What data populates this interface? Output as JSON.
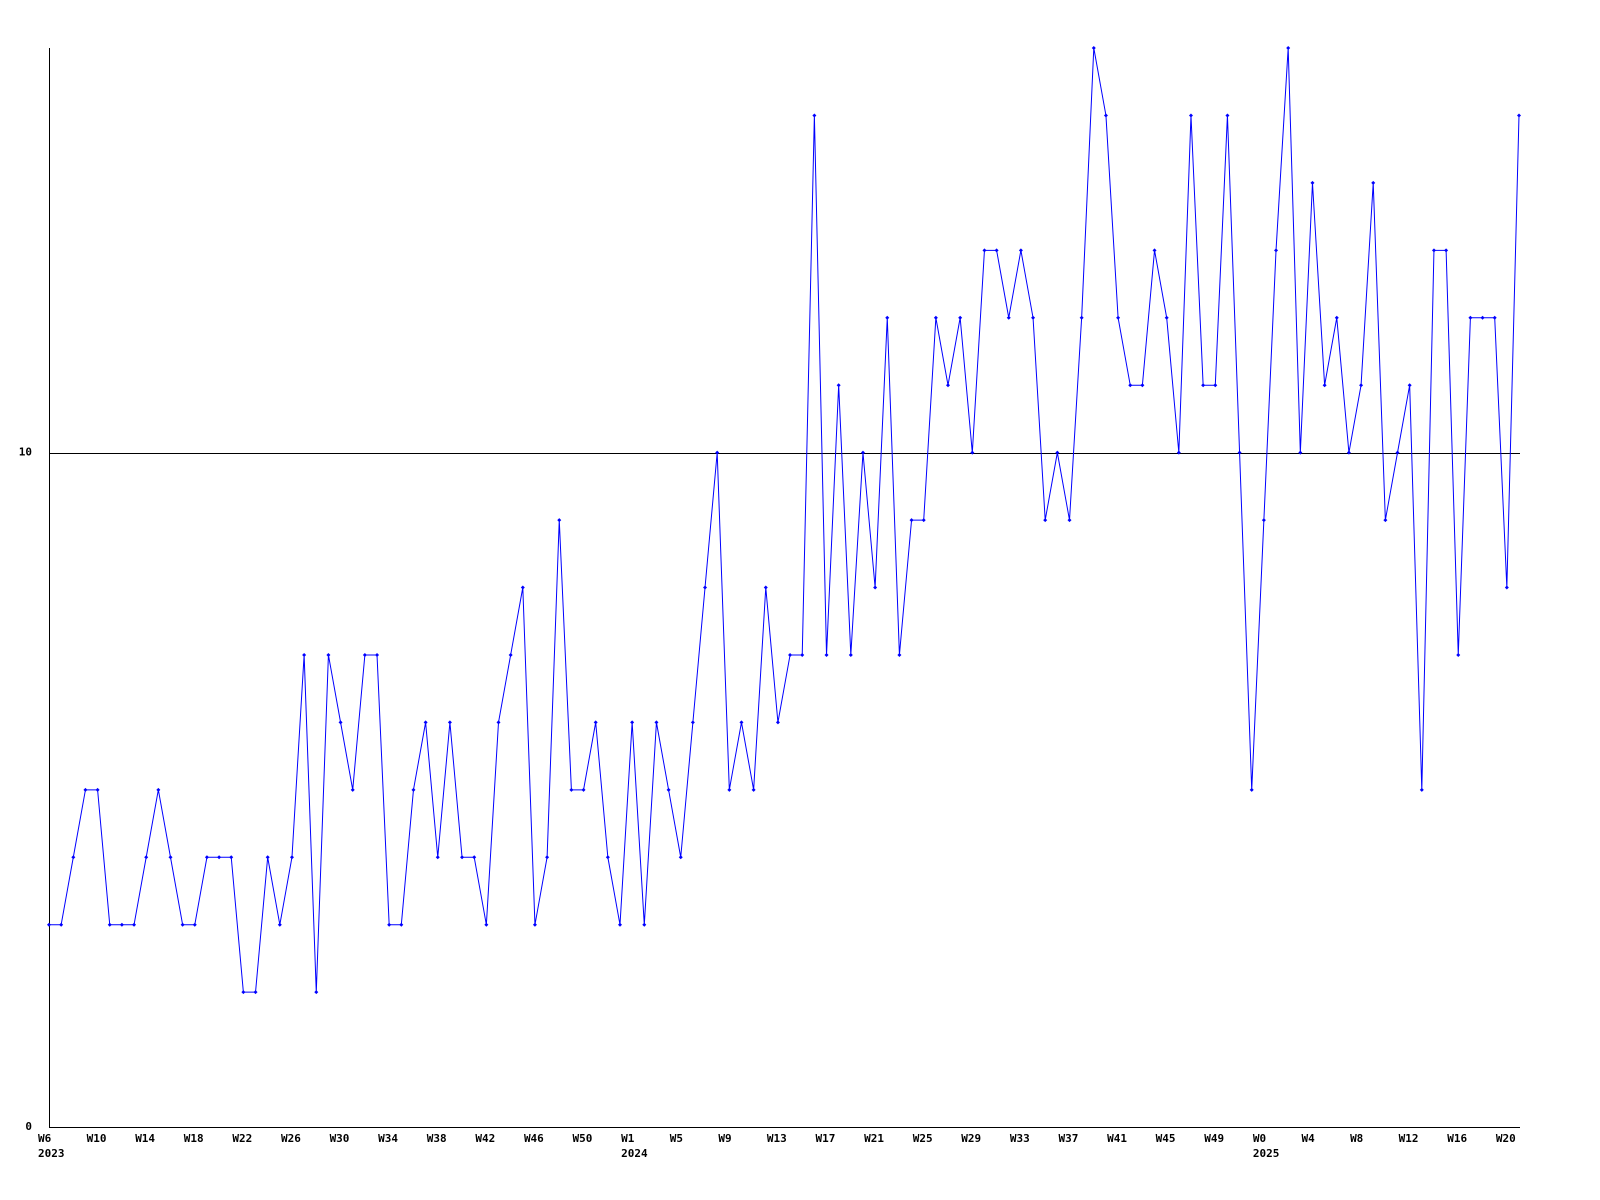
{
  "chart_data": {
    "type": "line",
    "categories": [
      "W6",
      null,
      null,
      null,
      "W10",
      null,
      null,
      null,
      "W14",
      null,
      null,
      null,
      "W18",
      null,
      null,
      null,
      "W22",
      null,
      null,
      null,
      "W26",
      null,
      null,
      null,
      "W30",
      null,
      null,
      null,
      "W34",
      null,
      null,
      null,
      "W38",
      null,
      null,
      null,
      "W42",
      null,
      null,
      null,
      "W46",
      null,
      null,
      null,
      "W50",
      null,
      null,
      null,
      "W1",
      null,
      null,
      null,
      "W5",
      null,
      null,
      null,
      "W9",
      null,
      null,
      null,
      "W13",
      null,
      null,
      null,
      "W17",
      null,
      null,
      null,
      "W21",
      null,
      null,
      null,
      "W25",
      null,
      null,
      null,
      "W29",
      null,
      null,
      null,
      "W33",
      null,
      null,
      null,
      "W37",
      null,
      null,
      null,
      "W41",
      null,
      null,
      null,
      "W45",
      null,
      null,
      null,
      "W49",
      null,
      null,
      null,
      "W0",
      null,
      null,
      null,
      "W4",
      null,
      null,
      null,
      "W8",
      null,
      null,
      null,
      "W12",
      null,
      null,
      null,
      "W16",
      null,
      null,
      null,
      "W20",
      null
    ],
    "category_years": [
      "2023",
      null,
      null,
      null,
      null,
      null,
      null,
      null,
      null,
      null,
      null,
      null,
      null,
      null,
      null,
      null,
      null,
      null,
      null,
      null,
      null,
      null,
      null,
      null,
      null,
      null,
      null,
      null,
      null,
      null,
      null,
      null,
      null,
      null,
      null,
      null,
      null,
      null,
      null,
      null,
      null,
      null,
      null,
      null,
      null,
      null,
      null,
      null,
      "2024",
      null,
      null,
      null,
      null,
      null,
      null,
      null,
      null,
      null,
      null,
      null,
      null,
      null,
      null,
      null,
      null,
      null,
      null,
      null,
      null,
      null,
      null,
      null,
      null,
      null,
      null,
      null,
      null,
      null,
      null,
      null,
      null,
      null,
      null,
      null,
      null,
      null,
      null,
      null,
      null,
      null,
      null,
      null,
      null,
      null,
      null,
      null,
      null,
      null,
      null,
      null,
      "2025",
      null,
      null,
      null,
      null,
      null,
      null,
      null,
      null,
      null,
      null,
      null,
      null,
      null,
      null,
      null,
      null,
      null,
      null,
      null,
      null,
      null
    ],
    "series": [
      {
        "color": "#0000ff",
        "values": [
          3,
          3,
          4,
          5,
          5,
          3,
          3,
          3,
          4,
          5,
          4,
          3,
          3,
          4,
          4,
          4,
          2,
          2,
          4,
          3,
          4,
          7,
          2,
          7,
          6,
          5,
          7,
          7,
          3,
          3,
          5,
          6,
          4,
          6,
          4,
          4,
          3,
          6,
          7,
          8,
          3,
          4,
          9,
          5,
          5,
          6,
          4,
          3,
          6,
          3,
          6,
          5,
          4,
          6,
          8,
          10,
          5,
          6,
          5,
          8,
          6,
          7,
          7,
          15,
          7,
          11,
          7,
          10,
          8,
          12,
          7,
          9,
          9,
          12,
          11,
          12,
          10,
          13,
          13,
          12,
          13,
          12,
          9,
          10,
          9,
          12,
          16,
          15,
          12,
          11,
          11,
          13,
          12,
          10,
          15,
          11,
          11,
          15,
          10,
          5,
          9,
          13,
          16,
          10,
          14,
          11,
          12,
          10,
          11,
          14,
          9,
          10,
          11,
          5,
          13,
          13,
          7,
          12,
          12,
          12,
          8,
          15
        ]
      }
    ],
    "ylim": [
      0,
      16
    ],
    "yticks": [
      0,
      10
    ],
    "grid": true
  }
}
